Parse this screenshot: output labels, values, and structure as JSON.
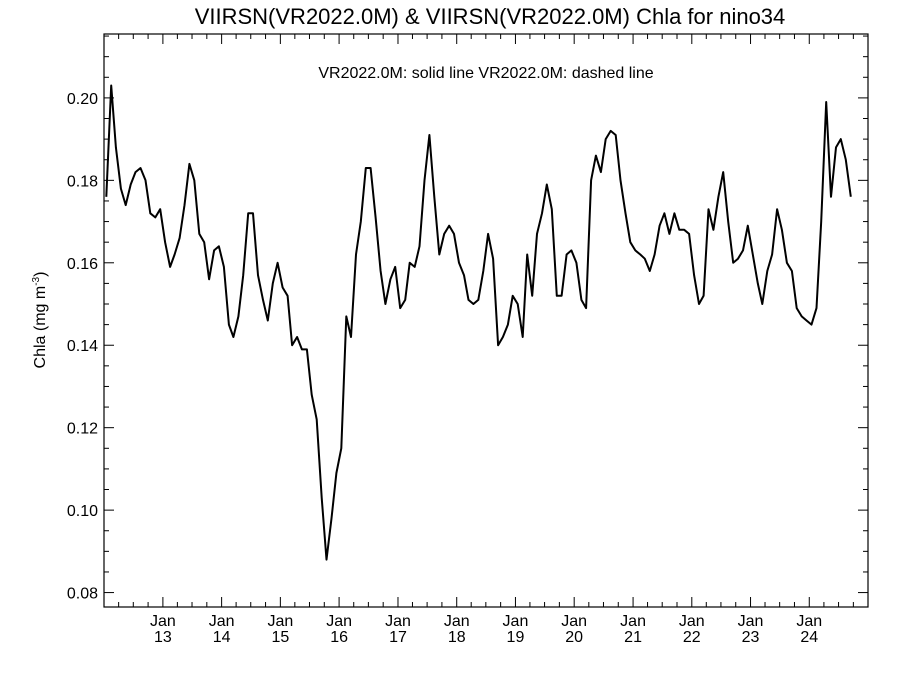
{
  "chart_data": {
    "type": "line",
    "title": "VIIRSN(VR2022.0M) & VIIRSN(VR2022.0M)  Chla for nino34",
    "legend_text": "VR2022.0M: solid line   VR2022.0M: dashed line",
    "ylabel": {
      "main": "Chla (mg m",
      "sup": "-3",
      "close": ")"
    },
    "xlabel": "",
    "ylim": [
      0.0765,
      0.2155
    ],
    "yticks": [
      "0.08",
      "0.10",
      "0.12",
      "0.14",
      "0.16",
      "0.18",
      "0.20"
    ],
    "xlim": [
      "2012-01-01",
      "2024-12-31"
    ],
    "xticks": [
      {
        "date": "2013-01-01",
        "month": "Jan",
        "year": "13"
      },
      {
        "date": "2014-01-01",
        "month": "Jan",
        "year": "14"
      },
      {
        "date": "2015-01-01",
        "month": "Jan",
        "year": "15"
      },
      {
        "date": "2016-01-01",
        "month": "Jan",
        "year": "16"
      },
      {
        "date": "2017-01-01",
        "month": "Jan",
        "year": "17"
      },
      {
        "date": "2018-01-01",
        "month": "Jan",
        "year": "18"
      },
      {
        "date": "2019-01-01",
        "month": "Jan",
        "year": "19"
      },
      {
        "date": "2020-01-01",
        "month": "Jan",
        "year": "20"
      },
      {
        "date": "2021-01-01",
        "month": "Jan",
        "year": "21"
      },
      {
        "date": "2022-01-01",
        "month": "Jan",
        "year": "22"
      },
      {
        "date": "2023-01-01",
        "month": "Jan",
        "year": "23"
      },
      {
        "date": "2024-01-01",
        "month": "Jan",
        "year": "24"
      }
    ],
    "grid": false,
    "legend_position": "top-center",
    "series": [
      {
        "line_style": "solid",
        "color": "#000000",
        "points": [
          [
            "2012-01-15",
            0.176
          ],
          [
            "2012-02-15",
            0.203
          ],
          [
            "2012-03-15",
            0.188
          ],
          [
            "2012-04-15",
            0.178
          ],
          [
            "2012-05-15",
            0.174
          ],
          [
            "2012-06-15",
            0.179
          ],
          [
            "2012-07-15",
            0.182
          ],
          [
            "2012-08-15",
            0.183
          ],
          [
            "2012-09-15",
            0.18
          ],
          [
            "2012-10-15",
            0.172
          ],
          [
            "2012-11-15",
            0.171
          ],
          [
            "2012-12-15",
            0.173
          ],
          [
            "2013-01-15",
            0.165
          ],
          [
            "2013-02-15",
            0.159
          ],
          [
            "2013-03-15",
            0.162
          ],
          [
            "2013-04-15",
            0.166
          ],
          [
            "2013-05-15",
            0.174
          ],
          [
            "2013-06-15",
            0.184
          ],
          [
            "2013-07-15",
            0.18
          ],
          [
            "2013-08-15",
            0.167
          ],
          [
            "2013-09-15",
            0.165
          ],
          [
            "2013-10-15",
            0.156
          ],
          [
            "2013-11-15",
            0.163
          ],
          [
            "2013-12-15",
            0.164
          ],
          [
            "2014-01-15",
            0.159
          ],
          [
            "2014-02-15",
            0.145
          ],
          [
            "2014-03-15",
            0.142
          ],
          [
            "2014-04-15",
            0.147
          ],
          [
            "2014-05-15",
            0.157
          ],
          [
            "2014-06-15",
            0.172
          ],
          [
            "2014-07-15",
            0.172
          ],
          [
            "2014-08-15",
            0.157
          ],
          [
            "2014-09-15",
            0.151
          ],
          [
            "2014-10-15",
            0.146
          ],
          [
            "2014-11-15",
            0.155
          ],
          [
            "2014-12-15",
            0.16
          ],
          [
            "2015-01-15",
            0.154
          ],
          [
            "2015-02-15",
            0.152
          ],
          [
            "2015-03-15",
            0.14
          ],
          [
            "2015-04-15",
            0.142
          ],
          [
            "2015-05-15",
            0.139
          ],
          [
            "2015-06-15",
            0.139
          ],
          [
            "2015-07-15",
            0.128
          ],
          [
            "2015-08-15",
            0.122
          ],
          [
            "2015-09-15",
            0.103
          ],
          [
            "2015-10-15",
            0.088
          ],
          [
            "2015-11-15",
            0.098
          ],
          [
            "2015-12-15",
            0.109
          ],
          [
            "2016-01-15",
            0.115
          ],
          [
            "2016-02-15",
            0.147
          ],
          [
            "2016-03-15",
            0.142
          ],
          [
            "2016-04-15",
            0.162
          ],
          [
            "2016-05-15",
            0.17
          ],
          [
            "2016-06-15",
            0.183
          ],
          [
            "2016-07-15",
            0.183
          ],
          [
            "2016-08-15",
            0.171
          ],
          [
            "2016-09-15",
            0.158
          ],
          [
            "2016-10-15",
            0.15
          ],
          [
            "2016-11-15",
            0.156
          ],
          [
            "2016-12-15",
            0.159
          ],
          [
            "2017-01-15",
            0.149
          ],
          [
            "2017-02-15",
            0.151
          ],
          [
            "2017-03-15",
            0.16
          ],
          [
            "2017-04-15",
            0.159
          ],
          [
            "2017-05-15",
            0.164
          ],
          [
            "2017-06-15",
            0.18
          ],
          [
            "2017-07-15",
            0.191
          ],
          [
            "2017-08-15",
            0.176
          ],
          [
            "2017-09-15",
            0.162
          ],
          [
            "2017-10-15",
            0.167
          ],
          [
            "2017-11-15",
            0.169
          ],
          [
            "2017-12-15",
            0.167
          ],
          [
            "2018-01-15",
            0.16
          ],
          [
            "2018-02-15",
            0.157
          ],
          [
            "2018-03-15",
            0.151
          ],
          [
            "2018-04-15",
            0.15
          ],
          [
            "2018-05-15",
            0.151
          ],
          [
            "2018-06-15",
            0.158
          ],
          [
            "2018-07-15",
            0.167
          ],
          [
            "2018-08-15",
            0.161
          ],
          [
            "2018-09-15",
            0.14
          ],
          [
            "2018-10-15",
            0.142
          ],
          [
            "2018-11-15",
            0.145
          ],
          [
            "2018-12-15",
            0.152
          ],
          [
            "2019-01-15",
            0.15
          ],
          [
            "2019-02-15",
            0.142
          ],
          [
            "2019-03-15",
            0.162
          ],
          [
            "2019-04-15",
            0.152
          ],
          [
            "2019-05-15",
            0.167
          ],
          [
            "2019-06-15",
            0.172
          ],
          [
            "2019-07-15",
            0.179
          ],
          [
            "2019-08-15",
            0.173
          ],
          [
            "2019-09-15",
            0.152
          ],
          [
            "2019-10-15",
            0.152
          ],
          [
            "2019-11-15",
            0.162
          ],
          [
            "2019-12-15",
            0.163
          ],
          [
            "2020-01-15",
            0.16
          ],
          [
            "2020-02-15",
            0.151
          ],
          [
            "2020-03-15",
            0.149
          ],
          [
            "2020-04-15",
            0.18
          ],
          [
            "2020-05-15",
            0.186
          ],
          [
            "2020-06-15",
            0.182
          ],
          [
            "2020-07-15",
            0.19
          ],
          [
            "2020-08-15",
            0.192
          ],
          [
            "2020-09-15",
            0.191
          ],
          [
            "2020-10-15",
            0.18
          ],
          [
            "2020-11-15",
            0.172
          ],
          [
            "2020-12-15",
            0.165
          ],
          [
            "2021-01-15",
            0.163
          ],
          [
            "2021-02-15",
            0.162
          ],
          [
            "2021-03-15",
            0.161
          ],
          [
            "2021-04-15",
            0.158
          ],
          [
            "2021-05-15",
            0.162
          ],
          [
            "2021-06-15",
            0.169
          ],
          [
            "2021-07-15",
            0.172
          ],
          [
            "2021-08-15",
            0.167
          ],
          [
            "2021-09-15",
            0.172
          ],
          [
            "2021-10-15",
            0.168
          ],
          [
            "2021-11-15",
            0.168
          ],
          [
            "2021-12-15",
            0.167
          ],
          [
            "2022-01-15",
            0.157
          ],
          [
            "2022-02-15",
            0.15
          ],
          [
            "2022-03-15",
            0.152
          ],
          [
            "2022-04-15",
            0.173
          ],
          [
            "2022-05-15",
            0.168
          ],
          [
            "2022-06-15",
            0.176
          ],
          [
            "2022-07-15",
            0.182
          ],
          [
            "2022-08-15",
            0.17
          ],
          [
            "2022-09-15",
            0.16
          ],
          [
            "2022-10-15",
            0.161
          ],
          [
            "2022-11-15",
            0.163
          ],
          [
            "2022-12-15",
            0.169
          ],
          [
            "2023-01-15",
            0.162
          ],
          [
            "2023-02-15",
            0.155
          ],
          [
            "2023-03-15",
            0.15
          ],
          [
            "2023-04-15",
            0.158
          ],
          [
            "2023-05-15",
            0.162
          ],
          [
            "2023-06-15",
            0.173
          ],
          [
            "2023-07-15",
            0.168
          ],
          [
            "2023-08-15",
            0.16
          ],
          [
            "2023-09-15",
            0.158
          ],
          [
            "2023-10-15",
            0.149
          ],
          [
            "2023-11-15",
            0.147
          ],
          [
            "2023-12-15",
            0.146
          ],
          [
            "2024-01-15",
            0.145
          ],
          [
            "2024-02-15",
            0.149
          ],
          [
            "2024-03-15",
            0.17
          ],
          [
            "2024-04-15",
            0.199
          ],
          [
            "2024-05-15",
            0.176
          ],
          [
            "2024-06-15",
            0.188
          ],
          [
            "2024-07-15",
            0.19
          ],
          [
            "2024-08-15",
            0.185
          ],
          [
            "2024-09-15",
            0.176
          ]
        ]
      }
    ]
  }
}
